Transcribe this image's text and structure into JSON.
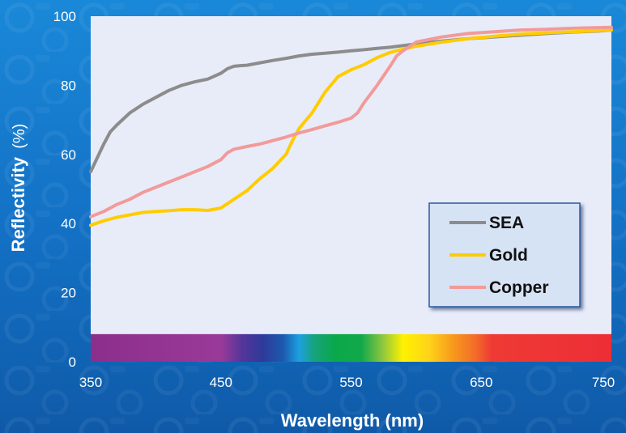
{
  "chart_data": {
    "type": "line",
    "xlabel": "Wavelength (nm)",
    "ylabel_main": "Reflectivity",
    "ylabel_unit": "(%)",
    "xlim": [
      350,
      750
    ],
    "ylim": [
      0,
      100
    ],
    "x_ticks": [
      350,
      450,
      550,
      650,
      750
    ],
    "y_ticks": [
      0,
      20,
      40,
      60,
      80,
      100
    ],
    "legend_position": "bottom-right",
    "spectrum_band": {
      "y_from": 0,
      "y_to": 8
    },
    "series": [
      {
        "name": "SEA",
        "color": "#8c8c8c",
        "x": [
          350,
          355,
          360,
          365,
          370,
          380,
          390,
          400,
          410,
          420,
          430,
          440,
          450,
          455,
          460,
          465,
          470,
          480,
          490,
          500,
          510,
          520,
          530,
          540,
          550,
          560,
          570,
          580,
          590,
          600,
          620,
          640,
          660,
          680,
          700,
          720,
          740,
          750
        ],
        "y": [
          55,
          59,
          63,
          66.5,
          68.5,
          72,
          74.5,
          76.5,
          78.5,
          80,
          81,
          81.8,
          83.5,
          84.8,
          85.5,
          85.7,
          85.8,
          86.5,
          87.2,
          87.8,
          88.5,
          89,
          89.3,
          89.6,
          90,
          90.3,
          90.7,
          91,
          91.5,
          92,
          92.8,
          93.5,
          94,
          94.5,
          95,
          95.4,
          95.7,
          96
        ]
      },
      {
        "name": "Gold",
        "color": "#ffcc00",
        "x": [
          350,
          360,
          370,
          380,
          390,
          400,
          410,
          420,
          430,
          440,
          450,
          460,
          470,
          480,
          490,
          500,
          505,
          510,
          520,
          530,
          540,
          550,
          560,
          570,
          580,
          590,
          600,
          620,
          640,
          660,
          680,
          700,
          720,
          740,
          750
        ],
        "y": [
          39.5,
          40.8,
          41.8,
          42.5,
          43.2,
          43.5,
          43.7,
          44,
          44,
          43.8,
          44.5,
          47,
          49.5,
          53,
          56,
          60,
          64,
          67.5,
          72,
          78,
          82.5,
          84.5,
          86,
          88,
          89.5,
          90.5,
          91.3,
          92.5,
          93.5,
          94.2,
          94.8,
          95.2,
          95.5,
          95.8,
          96
        ]
      },
      {
        "name": "Copper",
        "color": "#f29a9a",
        "x": [
          350,
          360,
          370,
          380,
          390,
          400,
          410,
          420,
          430,
          440,
          450,
          455,
          460,
          470,
          480,
          490,
          500,
          510,
          520,
          530,
          540,
          550,
          555,
          560,
          570,
          580,
          585,
          590,
          600,
          620,
          640,
          660,
          680,
          700,
          720,
          740,
          750
        ],
        "y": [
          42,
          43.5,
          45.5,
          47,
          49,
          50.5,
          52,
          53.5,
          55,
          56.5,
          58.5,
          60.5,
          61.5,
          62.3,
          63,
          64,
          65,
          66.2,
          67.2,
          68.3,
          69.3,
          70.5,
          72,
          75,
          80,
          85.5,
          88.5,
          90,
          92.5,
          94,
          95,
          95.5,
          96,
          96.2,
          96.5,
          96.7,
          96.8
        ]
      }
    ]
  }
}
